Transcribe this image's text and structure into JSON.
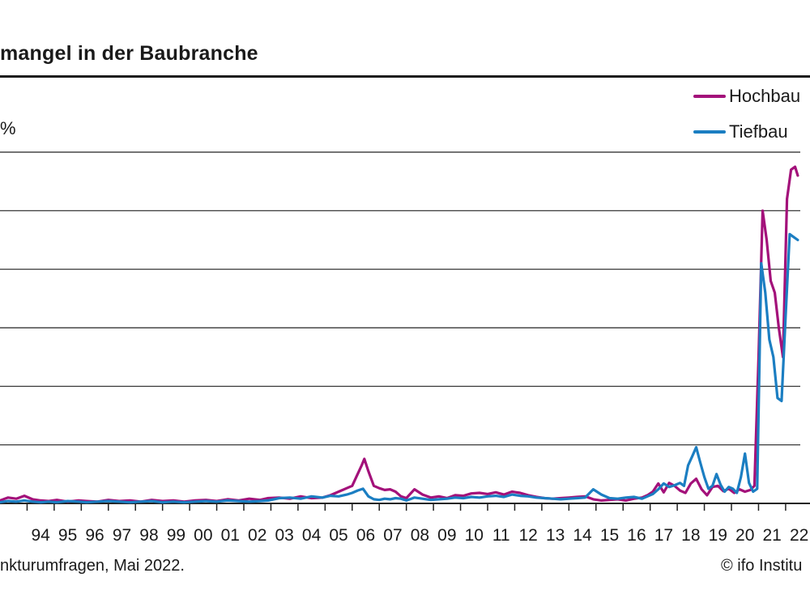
{
  "header": {
    "title": "mangel in der Baubranche",
    "unit_label": "%"
  },
  "footer": {
    "source": "nkturumfragen, Mai 2022.",
    "copyright": "© ifo Institu"
  },
  "colors": {
    "hochbau": "#A3117A",
    "tiefbau": "#1B7EC2",
    "grid": "#222222",
    "axis": "#222222"
  },
  "chart_data": {
    "type": "line",
    "title": "mangel in der Baubranche",
    "xlabel": "",
    "ylabel": "%",
    "xlim": [
      1993.0,
      2022.9
    ],
    "ylim": [
      0,
      60
    ],
    "grid": true,
    "legend_position": "top-right",
    "x_tick_labels": [
      "94",
      "95",
      "96",
      "97",
      "98",
      "99",
      "00",
      "01",
      "02",
      "03",
      "04",
      "05",
      "06",
      "07",
      "08",
      "09",
      "10",
      "11",
      "12",
      "13",
      "14",
      "15",
      "16",
      "17",
      "18",
      "19",
      "20",
      "21",
      "22"
    ],
    "series": [
      {
        "name": "Hochbau",
        "color": "#A3117A",
        "x": [
          1993.0,
          1993.3,
          1993.6,
          1993.9,
          1994.2,
          1994.5,
          1994.8,
          1995.1,
          1995.5,
          1995.9,
          1996.2,
          1996.6,
          1997.0,
          1997.4,
          1997.8,
          1998.2,
          1998.6,
          1999.0,
          1999.4,
          1999.8,
          2000.2,
          2000.6,
          2001.0,
          2001.4,
          2001.8,
          2002.2,
          2002.6,
          2002.9,
          2003.3,
          2003.7,
          2004.1,
          2004.5,
          2004.9,
          2005.2,
          2005.5,
          2005.8,
          2006.0,
          2006.2,
          2006.35,
          2006.45,
          2006.6,
          2006.8,
          2007.0,
          2007.2,
          2007.4,
          2007.6,
          2007.8,
          2008.0,
          2008.3,
          2008.6,
          2008.9,
          2009.2,
          2009.5,
          2009.8,
          2010.1,
          2010.4,
          2010.7,
          2011.0,
          2011.3,
          2011.6,
          2011.9,
          2012.2,
          2012.5,
          2012.8,
          2013.1,
          2013.4,
          2013.7,
          2014.0,
          2014.3,
          2014.6,
          2014.9,
          2015.2,
          2015.5,
          2015.8,
          2016.1,
          2016.4,
          2016.7,
          2016.9,
          2017.1,
          2017.3,
          2017.5,
          2017.7,
          2017.9,
          2018.1,
          2018.3,
          2018.5,
          2018.7,
          2018.9,
          2019.1,
          2019.3,
          2019.5,
          2019.7,
          2019.9,
          2020.1,
          2020.3,
          2020.5,
          2020.7,
          2020.85,
          2021.0,
          2021.15,
          2021.3,
          2021.45,
          2021.6,
          2021.75,
          2021.9,
          2022.05,
          2022.2,
          2022.35,
          2022.45
        ],
        "y": [
          0.5,
          1.0,
          0.8,
          1.3,
          0.7,
          0.5,
          0.4,
          0.6,
          0.3,
          0.5,
          0.4,
          0.3,
          0.6,
          0.4,
          0.5,
          0.3,
          0.6,
          0.4,
          0.5,
          0.3,
          0.5,
          0.6,
          0.4,
          0.7,
          0.5,
          0.8,
          0.6,
          0.9,
          1.0,
          0.8,
          1.2,
          0.9,
          1.0,
          1.4,
          2.0,
          2.6,
          3.0,
          5.0,
          6.5,
          7.6,
          5.5,
          3.0,
          2.6,
          2.3,
          2.4,
          2.0,
          1.2,
          0.9,
          2.4,
          1.5,
          1.0,
          1.2,
          0.9,
          1.4,
          1.3,
          1.7,
          1.8,
          1.6,
          1.9,
          1.5,
          2.0,
          1.8,
          1.4,
          1.1,
          0.9,
          0.8,
          0.9,
          1.0,
          1.1,
          1.2,
          0.7,
          0.5,
          0.6,
          0.7,
          0.5,
          0.8,
          1.0,
          1.4,
          2.0,
          3.4,
          1.9,
          3.5,
          3.0,
          2.2,
          1.8,
          3.4,
          4.2,
          2.4,
          1.4,
          2.8,
          3.0,
          2.1,
          2.5,
          1.8,
          2.4,
          2.0,
          2.3,
          3.0,
          25.0,
          50.0,
          45.0,
          38.0,
          36.0,
          30.0,
          25.0,
          52.0,
          57.0,
          57.5,
          56.0
        ]
      },
      {
        "name": "Tiefbau",
        "color": "#1B7EC2",
        "x": [
          1993.0,
          1993.3,
          1993.6,
          1993.9,
          1994.2,
          1994.5,
          1994.8,
          1995.1,
          1995.5,
          1995.9,
          1996.2,
          1996.6,
          1997.0,
          1997.4,
          1997.8,
          1998.2,
          1998.6,
          1999.0,
          1999.4,
          1999.8,
          2000.2,
          2000.6,
          2001.0,
          2001.4,
          2001.8,
          2002.2,
          2002.6,
          2002.9,
          2003.3,
          2003.7,
          2004.1,
          2004.5,
          2004.9,
          2005.2,
          2005.5,
          2005.8,
          2006.0,
          2006.2,
          2006.4,
          2006.6,
          2006.8,
          2007.0,
          2007.2,
          2007.4,
          2007.6,
          2007.8,
          2008.0,
          2008.3,
          2008.6,
          2008.9,
          2009.2,
          2009.5,
          2009.8,
          2010.1,
          2010.4,
          2010.7,
          2011.0,
          2011.3,
          2011.6,
          2011.9,
          2012.2,
          2012.5,
          2012.8,
          2013.1,
          2013.4,
          2013.7,
          2014.0,
          2014.3,
          2014.6,
          2014.9,
          2015.2,
          2015.5,
          2015.8,
          2016.1,
          2016.4,
          2016.7,
          2016.9,
          2017.1,
          2017.3,
          2017.5,
          2017.7,
          2017.9,
          2018.1,
          2018.25,
          2018.4,
          2018.55,
          2018.7,
          2018.85,
          2019.0,
          2019.15,
          2019.3,
          2019.45,
          2019.6,
          2019.75,
          2019.9,
          2020.05,
          2020.2,
          2020.35,
          2020.5,
          2020.65,
          2020.8,
          2020.95,
          2021.1,
          2021.25,
          2021.4,
          2021.55,
          2021.7,
          2021.85,
          2022.0,
          2022.15,
          2022.3,
          2022.45
        ],
        "y": [
          0.2,
          0.4,
          0.3,
          0.5,
          0.3,
          0.2,
          0.3,
          0.2,
          0.4,
          0.3,
          0.2,
          0.3,
          0.4,
          0.3,
          0.2,
          0.3,
          0.4,
          0.2,
          0.3,
          0.2,
          0.3,
          0.4,
          0.3,
          0.5,
          0.4,
          0.3,
          0.4,
          0.5,
          0.9,
          1.0,
          0.8,
          1.2,
          1.0,
          1.3,
          1.2,
          1.5,
          1.8,
          2.2,
          2.5,
          1.2,
          0.7,
          0.6,
          0.8,
          0.7,
          0.9,
          0.8,
          0.5,
          1.0,
          0.8,
          0.6,
          0.7,
          0.8,
          1.0,
          0.9,
          1.1,
          1.0,
          1.2,
          1.3,
          1.1,
          1.5,
          1.3,
          1.2,
          1.0,
          0.9,
          0.8,
          0.7,
          0.8,
          0.9,
          1.0,
          2.4,
          1.5,
          0.9,
          0.8,
          1.0,
          1.1,
          0.8,
          1.2,
          1.6,
          2.4,
          3.4,
          2.8,
          3.1,
          3.5,
          3.0,
          6.5,
          8.0,
          9.6,
          7.0,
          4.5,
          2.5,
          3.0,
          5.0,
          3.2,
          2.0,
          2.8,
          2.5,
          1.8,
          4.5,
          8.5,
          3.5,
          2.0,
          2.5,
          41.0,
          36.0,
          28.0,
          25.0,
          18.0,
          17.5,
          32.0,
          46.0,
          45.5,
          45.0
        ]
      }
    ]
  }
}
